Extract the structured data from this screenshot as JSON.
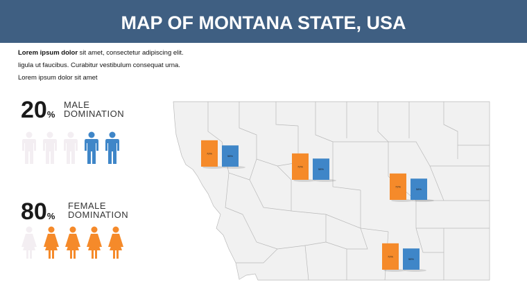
{
  "header": {
    "title": "MAP OF MONTANA STATE, USA"
  },
  "intro": {
    "bold": "Lorem ipsum dolor",
    "lines": [
      " sit amet, consectetur adipiscing elit.",
      "ligula ut faucibus. Curabitur vestibulum consequat urna.",
      "Lorem ipsum dolor sit amet"
    ]
  },
  "stats": [
    {
      "value": "20",
      "unit": "%",
      "label": [
        "MALE",
        "DOMINATION"
      ]
    },
    {
      "value": "80",
      "unit": "%",
      "label": [
        "FEMALE",
        "DOMINATION"
      ]
    }
  ],
  "map": {
    "colors": [
      "#f58a2a",
      "#3f86c8"
    ],
    "markers": [
      {
        "values": [
          72,
          58
        ],
        "value_labels": [
          "72%",
          "58%"
        ]
      },
      {
        "values": [
          72,
          58
        ],
        "value_labels": [
          "72%",
          "58%"
        ]
      },
      {
        "values": [
          72,
          58
        ],
        "value_labels": [
          "72%",
          "58%"
        ]
      },
      {
        "values": [
          72,
          58
        ],
        "value_labels": [
          "72%",
          "58%"
        ]
      }
    ]
  }
}
